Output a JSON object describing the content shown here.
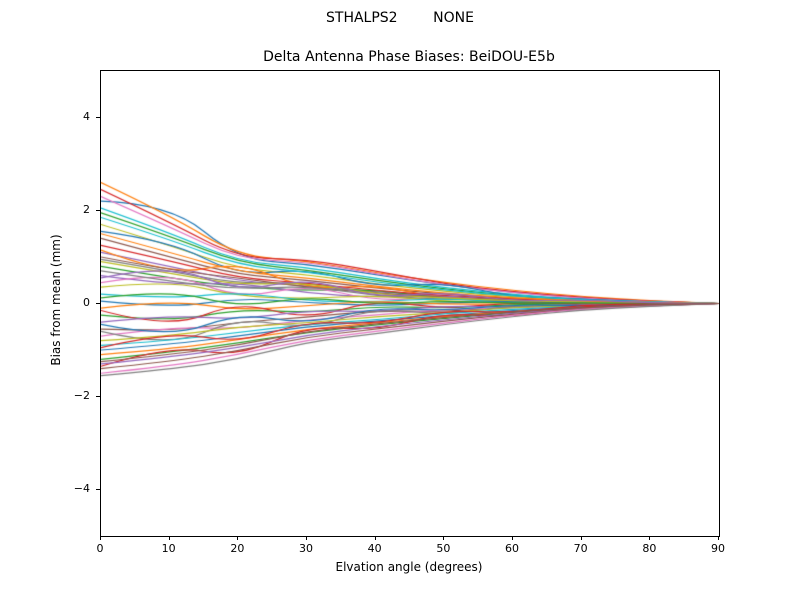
{
  "chart_data": {
    "type": "line",
    "suptitle": "STHALPS2        NONE",
    "title": "Delta Antenna Phase Biases: BeiDOU-E5b",
    "xlabel": "Elvation angle (degrees)",
    "ylabel": "Bias from mean (mm)",
    "xlim": [
      0,
      90
    ],
    "ylim": [
      -5,
      5
    ],
    "grid": false,
    "legend": "none",
    "x_ticks": [
      {
        "v": 0,
        "label": "0"
      },
      {
        "v": 10,
        "label": "10"
      },
      {
        "v": 20,
        "label": "20"
      },
      {
        "v": 30,
        "label": "30"
      },
      {
        "v": 40,
        "label": "40"
      },
      {
        "v": 50,
        "label": "50"
      },
      {
        "v": 60,
        "label": "60"
      },
      {
        "v": 70,
        "label": "70"
      },
      {
        "v": 80,
        "label": "80"
      },
      {
        "v": 90,
        "label": "90"
      }
    ],
    "y_ticks": [
      {
        "v": -4,
        "label": "−4"
      },
      {
        "v": -2,
        "label": "−2"
      },
      {
        "v": 0,
        "label": "0"
      },
      {
        "v": 2,
        "label": "2"
      },
      {
        "v": 4,
        "label": "4"
      }
    ],
    "palette": [
      "#1f77b4",
      "#ff7f0e",
      "#2ca02c",
      "#d62728",
      "#9467bd",
      "#8c564b",
      "#e377c2",
      "#7f7f7f",
      "#bcbd22",
      "#17becf"
    ],
    "x": [
      0,
      10,
      20,
      30,
      40,
      50,
      60,
      70,
      80,
      90
    ],
    "series": [
      [
        2.2,
        2.15,
        0.95,
        0.85,
        0.62,
        0.4,
        0.24,
        0.12,
        0.05,
        0.0
      ],
      [
        2.6,
        1.9,
        1.02,
        0.92,
        0.66,
        0.45,
        0.28,
        0.15,
        0.06,
        0.0
      ],
      [
        1.95,
        1.45,
        0.88,
        0.72,
        0.5,
        0.31,
        0.17,
        0.08,
        0.03,
        0.0
      ],
      [
        2.45,
        1.75,
        0.98,
        0.95,
        0.7,
        0.42,
        0.25,
        0.13,
        0.05,
        0.0
      ],
      [
        1.1,
        0.8,
        0.48,
        0.38,
        0.25,
        0.15,
        0.08,
        0.04,
        0.01,
        0.0
      ],
      [
        1.4,
        1.0,
        0.62,
        0.5,
        0.33,
        0.2,
        0.11,
        0.05,
        0.02,
        0.0
      ],
      [
        2.3,
        1.65,
        0.95,
        0.9,
        0.64,
        0.4,
        0.23,
        0.11,
        0.04,
        0.0
      ],
      [
        0.95,
        0.7,
        0.42,
        0.46,
        0.21,
        0.12,
        0.06,
        0.03,
        0.01,
        0.0
      ],
      [
        1.7,
        1.25,
        0.75,
        0.62,
        0.42,
        0.26,
        0.14,
        0.07,
        0.02,
        0.0
      ],
      [
        2.05,
        1.52,
        0.9,
        0.78,
        0.54,
        0.34,
        0.19,
        0.09,
        0.03,
        0.0
      ],
      [
        1.55,
        1.35,
        0.6,
        0.75,
        0.35,
        0.45,
        0.14,
        0.1,
        0.02,
        0.0
      ],
      [
        1.15,
        0.6,
        0.9,
        0.3,
        0.4,
        0.1,
        0.12,
        0.03,
        0.01,
        0.0
      ],
      [
        0.8,
        0.55,
        0.35,
        0.28,
        0.3,
        0.1,
        0.05,
        0.02,
        0.01,
        0.0
      ],
      [
        1.25,
        0.92,
        0.55,
        0.44,
        0.28,
        0.17,
        0.09,
        0.04,
        0.01,
        0.0
      ],
      [
        0.6,
        0.4,
        0.45,
        0.22,
        0.13,
        0.18,
        0.04,
        0.02,
        0.01,
        0.0
      ],
      [
        1.0,
        0.72,
        0.55,
        0.35,
        0.22,
        0.13,
        0.07,
        0.03,
        0.01,
        0.0
      ],
      [
        0.45,
        0.7,
        0.1,
        0.4,
        0.05,
        0.15,
        0.02,
        0.05,
        0.0,
        0.0
      ],
      [
        0.7,
        0.48,
        0.3,
        0.38,
        0.16,
        0.09,
        0.05,
        0.02,
        0.01,
        0.0
      ],
      [
        0.35,
        0.5,
        0.15,
        0.1,
        0.18,
        0.04,
        0.02,
        0.01,
        0.0,
        0.0
      ],
      [
        0.2,
        0.1,
        0.25,
        0.05,
        0.03,
        0.12,
        0.01,
        0.0,
        0.0,
        0.0
      ],
      [
        0.05,
        -0.1,
        0.12,
        0.02,
        -0.05,
        0.01,
        0.05,
        0.0,
        0.0,
        0.0
      ],
      [
        -0.1,
        0.08,
        -0.15,
        -0.05,
        0.06,
        -0.02,
        -0.01,
        0.0,
        0.0,
        0.0
      ],
      [
        -0.25,
        -0.4,
        -0.12,
        -0.2,
        -0.06,
        -0.1,
        -0.02,
        -0.01,
        0.0,
        0.0
      ],
      [
        -0.15,
        -0.55,
        0.05,
        -0.35,
        0.08,
        -0.12,
        0.03,
        -0.02,
        0.0,
        0.0
      ],
      [
        -0.4,
        -0.25,
        -0.35,
        -0.15,
        -0.18,
        -0.05,
        -0.08,
        -0.01,
        0.0,
        0.0
      ],
      [
        -0.55,
        -0.6,
        -0.4,
        -0.3,
        -0.15,
        -0.18,
        -0.06,
        -0.03,
        -0.01,
        0.0
      ],
      [
        -0.7,
        -0.5,
        -0.55,
        -0.35,
        -0.25,
        -0.12,
        -0.1,
        -0.04,
        -0.01,
        0.0
      ],
      [
        -0.6,
        -0.95,
        -0.3,
        -0.55,
        -0.1,
        -0.25,
        -0.04,
        -0.08,
        0.0,
        0.0
      ],
      [
        -0.8,
        -0.7,
        -0.5,
        -0.42,
        -0.28,
        -0.2,
        -0.08,
        -0.05,
        -0.02,
        0.0
      ],
      [
        -0.9,
        -0.8,
        -0.62,
        -0.45,
        -0.35,
        -0.22,
        -0.12,
        -0.06,
        -0.02,
        0.0
      ],
      [
        -1.0,
        -0.88,
        -0.7,
        -0.5,
        -0.38,
        -0.26,
        -0.15,
        -0.07,
        -0.03,
        0.0
      ],
      [
        -1.1,
        -0.98,
        -0.78,
        -0.55,
        -0.42,
        -0.28,
        -0.17,
        -0.08,
        -0.03,
        0.0
      ],
      [
        -1.2,
        -1.05,
        -0.85,
        -0.62,
        -0.46,
        -0.32,
        -0.19,
        -0.09,
        -0.04,
        0.0
      ],
      [
        -1.35,
        -0.9,
        -1.15,
        -0.48,
        -0.58,
        -0.2,
        -0.3,
        -0.05,
        -0.02,
        0.0
      ],
      [
        -1.3,
        -1.15,
        -0.95,
        -0.68,
        -0.5,
        -0.35,
        -0.21,
        -0.1,
        -0.04,
        0.0
      ],
      [
        -1.4,
        -1.25,
        -1.02,
        -0.72,
        -0.55,
        -0.38,
        -0.23,
        -0.11,
        -0.05,
        0.0
      ],
      [
        -1.5,
        -1.35,
        -1.1,
        -0.78,
        -0.6,
        -0.42,
        -0.25,
        -0.12,
        -0.05,
        0.0
      ],
      [
        -1.55,
        -1.42,
        -1.2,
        -0.83,
        -0.65,
        -0.45,
        -0.28,
        -0.14,
        -0.06,
        0.0
      ],
      [
        0.9,
        0.65,
        0.4,
        0.45,
        0.2,
        0.12,
        0.06,
        0.03,
        0.01,
        0.0
      ],
      [
        1.85,
        1.38,
        0.82,
        0.68,
        0.46,
        0.29,
        0.16,
        0.08,
        0.03,
        0.0
      ],
      [
        -0.45,
        -0.75,
        -0.2,
        -0.45,
        -0.08,
        -0.16,
        -0.02,
        -0.05,
        -0.01,
        0.0
      ],
      [
        1.5,
        1.1,
        0.68,
        0.55,
        0.37,
        0.22,
        0.12,
        0.06,
        0.02,
        0.0
      ],
      [
        0.12,
        0.3,
        -0.08,
        0.15,
        -0.03,
        0.06,
        0.0,
        0.02,
        0.0,
        0.0
      ],
      [
        -0.95,
        -0.6,
        -0.85,
        -0.38,
        -0.45,
        -0.15,
        -0.2,
        -0.03,
        -0.01,
        0.0
      ],
      [
        0.55,
        0.85,
        0.25,
        0.55,
        0.12,
        0.25,
        0.05,
        0.08,
        0.01,
        0.0
      ],
      [
        -1.25,
        -1.1,
        -0.9,
        -0.6,
        -0.44,
        -0.3,
        -0.18,
        -0.08,
        -0.03,
        0.0
      ]
    ]
  }
}
